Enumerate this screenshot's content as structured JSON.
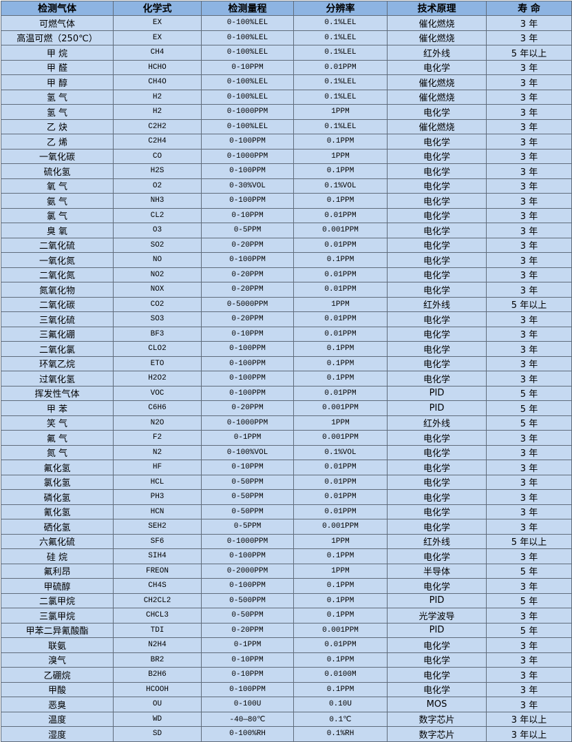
{
  "colors": {
    "header_bg": "#8db4e2",
    "row_bg": "#c5d9f1",
    "border": "#5f6b7a"
  },
  "headers": [
    "检测气体",
    "化学式",
    "检测量程",
    "分辨率",
    "技术原理",
    "寿 命"
  ],
  "rows": [
    [
      "可燃气体",
      "EX",
      "0-100%LEL",
      "0.1%LEL",
      "催化燃烧",
      "3 年"
    ],
    [
      "高温可燃（250℃）",
      "EX",
      "0-100%LEL",
      "0.1%LEL",
      "催化燃烧",
      "3 年"
    ],
    [
      "甲 烷",
      "CH4",
      "0-100%LEL",
      "0.1%LEL",
      "红外线",
      "5 年以上"
    ],
    [
      "甲 醛",
      "HCHO",
      "0-10PPM",
      "0.01PPM",
      "电化学",
      "3 年"
    ],
    [
      "甲 醇",
      "CH4O",
      "0-100%LEL",
      "0.1%LEL",
      "催化燃烧",
      "3 年"
    ],
    [
      "氢 气",
      "H2",
      "0-100%LEL",
      "0.1%LEL",
      "催化燃烧",
      "3 年"
    ],
    [
      "氢 气",
      "H2",
      "0-1000PPM",
      "1PPM",
      "电化学",
      "3 年"
    ],
    [
      "乙 炔",
      "C2H2",
      "0-100%LEL",
      "0.1%LEL",
      "催化燃烧",
      "3 年"
    ],
    [
      "乙 烯",
      "C2H4",
      "0-100PPM",
      "0.1PPM",
      "电化学",
      "3 年"
    ],
    [
      "一氧化碳",
      "CO",
      "0-1000PPM",
      "1PPM",
      "电化学",
      "3 年"
    ],
    [
      "硫化氢",
      "H2S",
      "0-100PPM",
      "0.1PPM",
      "电化学",
      "3 年"
    ],
    [
      "氧 气",
      "O2",
      "0-30%VOL",
      "0.1%VOL",
      "电化学",
      "3 年"
    ],
    [
      "氨 气",
      "NH3",
      "0-100PPM",
      "0.1PPM",
      "电化学",
      "3 年"
    ],
    [
      "氯 气",
      "CL2",
      "0-10PPM",
      "0.01PPM",
      "电化学",
      "3 年"
    ],
    [
      "臭 氧",
      "O3",
      "0-5PPM",
      "0.001PPM",
      "电化学",
      "3 年"
    ],
    [
      "二氧化硫",
      "SO2",
      "0-20PPM",
      "0.01PPM",
      "电化学",
      "3 年"
    ],
    [
      "一氧化氮",
      "NO",
      "0-100PPM",
      "0.1PPM",
      "电化学",
      "3 年"
    ],
    [
      "二氧化氮",
      "NO2",
      "0-20PPM",
      "0.01PPM",
      "电化学",
      "3 年"
    ],
    [
      "氮氧化物",
      "NOX",
      "0-20PPM",
      "0.01PPM",
      "电化学",
      "3 年"
    ],
    [
      "二氧化碳",
      "CO2",
      "0-5000PPM",
      "1PPM",
      "红外线",
      "5 年以上"
    ],
    [
      "三氧化硫",
      "SO3",
      "0-20PPM",
      "0.01PPM",
      "电化学",
      "3 年"
    ],
    [
      "三氟化硼",
      "BF3",
      "0-10PPM",
      "0.01PPM",
      "电化学",
      "3 年"
    ],
    [
      "二氧化氯",
      "CLO2",
      "0-100PPM",
      "0.1PPM",
      "电化学",
      "3 年"
    ],
    [
      "环氧乙烷",
      "ETO",
      "0-100PPM",
      "0.1PPM",
      "电化学",
      "3 年"
    ],
    [
      "过氧化氢",
      "H2O2",
      "0-100PPM",
      "0.1PPM",
      "电化学",
      "3 年"
    ],
    [
      "挥发性气体",
      "VOC",
      "0-100PPM",
      "0.01PPM",
      "PID",
      "5 年"
    ],
    [
      "甲 苯",
      "C6H6",
      "0-20PPM",
      "0.001PPM",
      "PID",
      "5 年"
    ],
    [
      "笑 气",
      "N2O",
      "0-1000PPM",
      "1PPM",
      "红外线",
      "5 年"
    ],
    [
      "氟 气",
      "F2",
      "0-1PPM",
      "0.001PPM",
      "电化学",
      "3 年"
    ],
    [
      "氮 气",
      "N2",
      "0-100%VOL",
      "0.1%VOL",
      "电化学",
      "3 年"
    ],
    [
      "氟化氢",
      "HF",
      "0-10PPM",
      "0.01PPM",
      "电化学",
      "3 年"
    ],
    [
      "氯化氢",
      "HCL",
      "0-50PPM",
      "0.01PPM",
      "电化学",
      "3 年"
    ],
    [
      "磷化氢",
      "PH3",
      "0-50PPM",
      "0.01PPM",
      "电化学",
      "3 年"
    ],
    [
      "氰化氢",
      "HCN",
      "0-50PPM",
      "0.01PPM",
      "电化学",
      "3 年"
    ],
    [
      "硒化氢",
      "SEH2",
      "0-5PPM",
      "0.001PPM",
      "电化学",
      "3 年"
    ],
    [
      "六氟化硫",
      "SF6",
      "0-1000PPM",
      "1PPM",
      "红外线",
      "5 年以上"
    ],
    [
      "硅 烷",
      "SIH4",
      "0-100PPM",
      "0.1PPM",
      "电化学",
      "3 年"
    ],
    [
      "氟利昂",
      "FREON",
      "0-2000PPM",
      "1PPM",
      "半导体",
      "5 年"
    ],
    [
      "甲硫醇",
      "CH4S",
      "0-100PPM",
      "0.1PPM",
      "电化学",
      "3 年"
    ],
    [
      "二氯甲烷",
      "CH2CL2",
      "0-500PPM",
      "0.1PPM",
      "PID",
      "5 年"
    ],
    [
      "三氯甲烷",
      "CHCL3",
      "0-50PPM",
      "0.1PPM",
      "光学波导",
      "3 年"
    ],
    [
      "甲苯二异氰酸酯",
      "TDI",
      "0-20PPM",
      "0.001PPM",
      "PID",
      "5 年"
    ],
    [
      "联氨",
      "N2H4",
      "0-1PPM",
      "0.01PPM",
      "电化学",
      "3 年"
    ],
    [
      "溴气",
      "BR2",
      "0-10PPM",
      "0.1PPM",
      "电化学",
      "3 年"
    ],
    [
      "乙硼烷",
      "B2H6",
      "0-10PPM",
      "0.0100M",
      "电化学",
      "3 年"
    ],
    [
      "甲酸",
      "HCOOH",
      "0-100PPM",
      "0.1PPM",
      "电化学",
      "3 年"
    ],
    [
      "恶臭",
      "OU",
      "0-100U",
      "0.10U",
      "MOS",
      "3 年"
    ],
    [
      "温度",
      "WD",
      "-40—80℃",
      "0.1℃",
      "数字芯片",
      "3 年以上"
    ],
    [
      "湿度",
      "SD",
      "0-100%RH",
      "0.1%RH",
      "数字芯片",
      "3 年以上"
    ]
  ]
}
